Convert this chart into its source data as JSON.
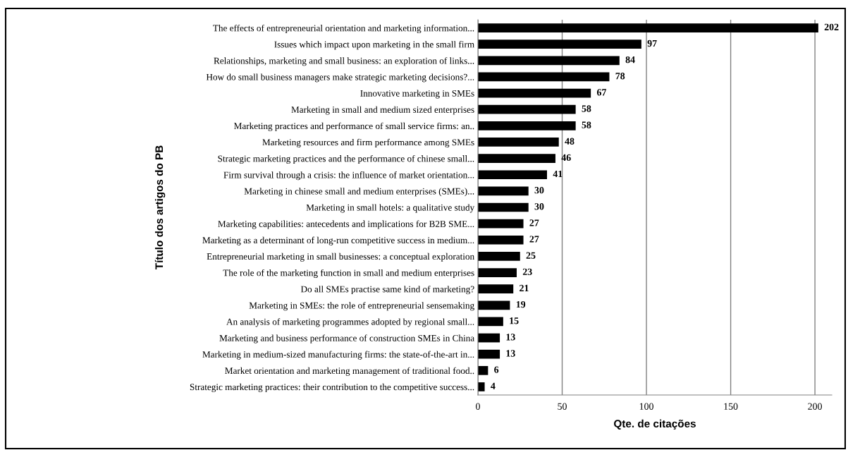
{
  "chart_data": {
    "type": "bar",
    "orientation": "horizontal",
    "categories": [
      "The effects of entrepreneurial orientation and marketing information...",
      "Issues which impact upon marketing in the small firm",
      "Relationships, marketing and small business: an exploration of links...",
      "How do small business managers make strategic marketing decisions?...",
      "Innovative marketing in SMEs",
      "Marketing in small and medium sized enterprises",
      "Marketing practices and performance of small service firms: an..",
      "Marketing resources and firm performance among SMEs",
      "Strategic marketing practices and the performance of chinese small...",
      "Firm survival through a crisis: the influence of market orientation...",
      "Marketing in chinese small and medium enterprises (SMEs)...",
      "Marketing in small hotels: a qualitative study",
      "Marketing capabilities: antecedents and implications for B2B SME...",
      "Marketing as a determinant of long-run competitive success in medium...",
      "Entrepreneurial marketing in small businesses: a conceptual exploration",
      "The role of the marketing function in small and medium enterprises",
      "Do all SMEs practise same kind of marketing?",
      "Marketing in SMEs: the role of entrepreneurial sensemaking",
      "An analysis of marketing programmes adopted by regional small...",
      "Marketing and business performance of construction SMEs in China",
      "Marketing in medium-sized manufacturing firms: the state-of-the-art in...",
      "Market orientation and marketing management of traditional food..",
      "Strategic marketing practices: their contribution to the competitive success..."
    ],
    "values": [
      202,
      97,
      84,
      78,
      67,
      58,
      58,
      48,
      46,
      41,
      30,
      30,
      27,
      27,
      25,
      23,
      21,
      19,
      15,
      13,
      13,
      6,
      4
    ],
    "color": "#000000",
    "data_labels": true,
    "xlabel": "Qte. de citações",
    "ylabel": "Título dos artigos do PB",
    "xlim": [
      0,
      210
    ],
    "xticks": [
      0,
      50,
      100,
      150,
      200
    ],
    "grid": "x",
    "legend": false
  }
}
